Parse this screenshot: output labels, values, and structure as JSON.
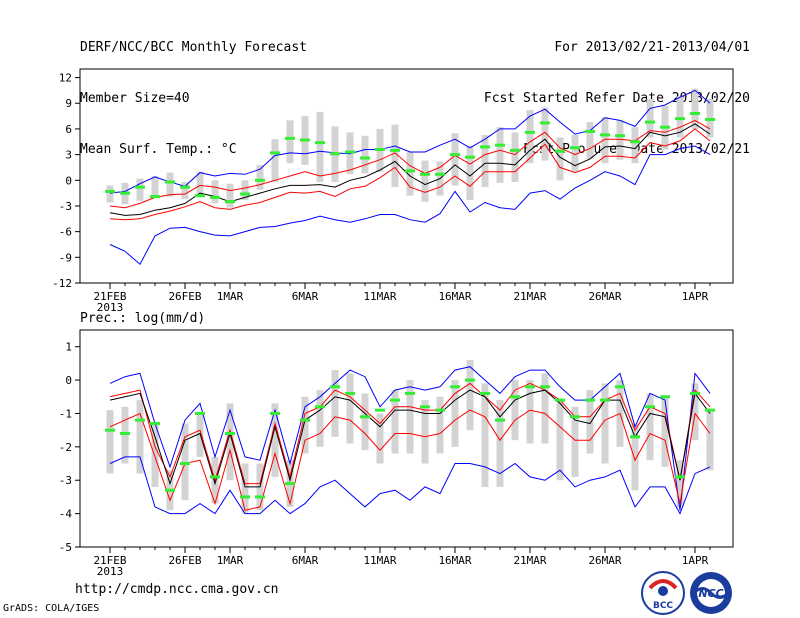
{
  "header": {
    "title": "DERF/NCC/BCC Monthly Forecast",
    "member_size": "Member Size=40",
    "variable_top": "Mean Surf. Temp.: °C",
    "forecast_range": "For 2013/02/21-2013/04/01",
    "started_refer": "Fcst Started Refer Date 2013/02/20",
    "produced": "Fcst Produced Date 2013/02/21"
  },
  "footer": {
    "url": "http://cmdp.ncc.cma.gov.cn",
    "grads": "GrADS: COLA/IGES",
    "logo_bcc": "BCC",
    "logo_ncc": "NCC"
  },
  "colors": {
    "max_min": "#0000ff",
    "spread": "#ff0000",
    "mean": "#000000",
    "obs": "#33ee33",
    "box": "#d3d3d3"
  },
  "chart_data": [
    {
      "type": "line",
      "title": "Mean Surf. Temp.: °C",
      "ylim": [
        -12,
        13
      ],
      "yticks": [
        "12",
        "9",
        "6",
        "3",
        "0",
        "-3",
        "-6",
        "-9",
        "-12"
      ],
      "yticks_values": [
        12,
        9,
        6,
        3,
        0,
        -3,
        -6,
        -9,
        -12
      ],
      "xticks": [
        {
          "day": 0,
          "label": "21FEB"
        },
        {
          "day": 5,
          "label": "26FEB"
        },
        {
          "day": 8,
          "label": "1MAR"
        },
        {
          "day": 13,
          "label": "6MAR"
        },
        {
          "day": 18,
          "label": "11MAR"
        },
        {
          "day": 23,
          "label": "16MAR"
        },
        {
          "day": 28,
          "label": "21MAR"
        },
        {
          "day": 33,
          "label": "26MAR"
        },
        {
          "day": 39,
          "label": "1APR"
        }
      ],
      "year_label": "2013",
      "series": [
        {
          "name": "max",
          "values": [
            -1.5,
            -1.3,
            -0.4,
            0.4,
            -0.2,
            -0.7,
            0.9,
            0.5,
            0.8,
            0.7,
            1.3,
            2.9,
            3.2,
            3.1,
            3.4,
            3.2,
            3.1,
            3.6,
            3.6,
            4.0,
            3.3,
            3.3,
            4.1,
            4.8,
            3.8,
            4.8,
            6.0,
            6.0,
            7.5,
            8.3,
            6.8,
            5.4,
            5.8,
            7.3,
            7.0,
            6.3,
            8.4,
            8.8,
            9.7,
            10.5,
            9.0
          ]
        },
        {
          "name": "spread_high",
          "values": [
            -3.0,
            -3.2,
            -2.7,
            -2.0,
            -1.7,
            -1.6,
            -0.6,
            -0.8,
            -1.2,
            -0.9,
            -0.5,
            0.0,
            0.5,
            1.0,
            0.5,
            0.8,
            1.2,
            1.8,
            2.4,
            3.2,
            1.7,
            0.8,
            1.5,
            2.9,
            1.9,
            3.0,
            3.5,
            3.0,
            4.5,
            5.6,
            3.8,
            3.0,
            3.7,
            4.8,
            4.8,
            4.6,
            5.8,
            5.6,
            6.2,
            7.0,
            6.0
          ]
        },
        {
          "name": "mean",
          "values": [
            -3.8,
            -4.1,
            -4.0,
            -3.5,
            -3.2,
            -2.7,
            -1.5,
            -1.9,
            -2.5,
            -2.0,
            -1.5,
            -1.0,
            -0.6,
            -0.6,
            -0.5,
            -0.8,
            0.0,
            0.4,
            1.2,
            2.2,
            0.5,
            -0.5,
            0.2,
            1.8,
            0.5,
            2.0,
            2.0,
            1.8,
            3.5,
            4.8,
            2.7,
            1.7,
            2.5,
            3.9,
            4.0,
            3.7,
            5.6,
            5.2,
            5.6,
            6.6,
            5.4
          ]
        },
        {
          "name": "spread_low",
          "values": [
            -4.5,
            -4.6,
            -4.5,
            -4.0,
            -3.6,
            -3.1,
            -2.5,
            -3.2,
            -3.4,
            -2.9,
            -2.6,
            -2.0,
            -1.4,
            -1.5,
            -1.3,
            -1.9,
            -1.0,
            -0.7,
            0.3,
            1.5,
            -0.8,
            -1.4,
            -0.8,
            0.5,
            -0.7,
            1.0,
            1.0,
            1.0,
            2.6,
            4.2,
            1.5,
            0.9,
            1.5,
            2.8,
            2.8,
            2.6,
            4.4,
            4.0,
            4.6,
            6.0,
            4.6
          ]
        },
        {
          "name": "min",
          "values": [
            -7.5,
            -8.3,
            -9.8,
            -6.5,
            -5.6,
            -5.5,
            -6.0,
            -6.4,
            -6.5,
            -6.0,
            -5.5,
            -5.4,
            -5.0,
            -4.7,
            -4.2,
            -4.6,
            -4.9,
            -4.5,
            -4.0,
            -4.0,
            -4.6,
            -4.9,
            -3.9,
            -1.3,
            -3.7,
            -2.6,
            -3.2,
            -3.4,
            -1.5,
            -1.2,
            -2.2,
            -0.9,
            0.0,
            1.0,
            0.5,
            -0.5,
            3.0,
            3.0,
            3.7,
            4.0,
            3.0
          ]
        },
        {
          "name": "obs",
          "values": [
            -1.3,
            -1.5,
            -0.8,
            -1.9,
            -0.2,
            -0.8,
            -1.8,
            -2.0,
            -2.5,
            -1.6,
            0.0,
            3.2,
            4.9,
            4.7,
            4.4,
            3.1,
            3.3,
            2.6,
            3.6,
            3.5,
            1.1,
            0.7,
            0.7,
            3.0,
            2.7,
            3.9,
            4.1,
            3.5,
            5.6,
            6.7,
            3.4,
            3.8,
            5.7,
            5.3,
            5.2,
            4.5,
            6.8,
            6.2,
            7.2,
            7.8,
            7.1
          ]
        }
      ],
      "boxes": [
        [
          -2.6,
          -0.6
        ],
        [
          -2.8,
          -0.3
        ],
        [
          -2.4,
          0.2
        ],
        [
          -1.8,
          0.5
        ],
        [
          -1.9,
          0.9
        ],
        [
          -2.2,
          -0.2
        ],
        [
          -1.7,
          1.0
        ],
        [
          -2.7,
          0.0
        ],
        [
          -3.2,
          -0.4
        ],
        [
          -2.3,
          0.0
        ],
        [
          -1.1,
          1.8
        ],
        [
          -0.2,
          4.8
        ],
        [
          2.0,
          7.0
        ],
        [
          1.8,
          7.5
        ],
        [
          -0.2,
          8.0
        ],
        [
          -0.2,
          6.3
        ],
        [
          0.7,
          5.6
        ],
        [
          0.8,
          5.2
        ],
        [
          1.0,
          6.0
        ],
        [
          -0.8,
          6.5
        ],
        [
          -1.8,
          3.3
        ],
        [
          -2.5,
          2.3
        ],
        [
          -1.8,
          2.2
        ],
        [
          -0.6,
          5.5
        ],
        [
          -2.3,
          4.0
        ],
        [
          -0.8,
          5.3
        ],
        [
          -0.3,
          6.2
        ],
        [
          -0.2,
          5.6
        ],
        [
          2.0,
          8.2
        ],
        [
          2.3,
          8.5
        ],
        [
          0.0,
          5.0
        ],
        [
          1.0,
          5.3
        ],
        [
          2.5,
          6.8
        ],
        [
          2.0,
          7.4
        ],
        [
          2.4,
          7.0
        ],
        [
          2.0,
          6.2
        ],
        [
          5.0,
          9.5
        ],
        [
          3.6,
          8.7
        ],
        [
          5.0,
          9.8
        ],
        [
          6.0,
          10.7
        ],
        [
          5.0,
          9.5
        ]
      ]
    },
    {
      "type": "line",
      "title": "Prec.: log(mm/d)",
      "ylim": [
        -5,
        1.5
      ],
      "yticks": [
        "1",
        "0",
        "-1",
        "-2",
        "-3",
        "-4",
        "-5"
      ],
      "yticks_values": [
        1,
        0,
        -1,
        -2,
        -3,
        -4,
        -5
      ],
      "xticks": [
        {
          "day": 0,
          "label": "21FEB"
        },
        {
          "day": 5,
          "label": "26FEB"
        },
        {
          "day": 8,
          "label": "1MAR"
        },
        {
          "day": 13,
          "label": "6MAR"
        },
        {
          "day": 18,
          "label": "11MAR"
        },
        {
          "day": 23,
          "label": "16MAR"
        },
        {
          "day": 28,
          "label": "21MAR"
        },
        {
          "day": 33,
          "label": "26MAR"
        },
        {
          "day": 39,
          "label": "1APR"
        }
      ],
      "year_label": "2013",
      "series": [
        {
          "name": "max",
          "values": [
            -0.1,
            0.1,
            0.2,
            -1.3,
            -2.6,
            -1.2,
            -0.7,
            -2.3,
            -0.9,
            -2.3,
            -2.4,
            -0.9,
            -2.5,
            -0.8,
            -0.5,
            -0.1,
            0.3,
            0.1,
            -0.8,
            -0.3,
            -0.2,
            -0.3,
            -0.2,
            0.3,
            0.4,
            0.0,
            -0.4,
            0.1,
            0.3,
            0.3,
            -0.2,
            -0.6,
            -0.6,
            -0.2,
            0.2,
            -1.4,
            -0.4,
            -0.6,
            -3.9,
            0.2,
            -0.4
          ]
        },
        {
          "name": "spread_high",
          "values": [
            -0.5,
            -0.4,
            -0.3,
            -2.0,
            -2.9,
            -1.7,
            -1.5,
            -3.0,
            -1.5,
            -3.1,
            -3.1,
            -1.3,
            -2.9,
            -1.0,
            -0.8,
            -0.3,
            -0.5,
            -0.9,
            -1.3,
            -0.8,
            -0.8,
            -0.9,
            -0.9,
            -0.4,
            -0.1,
            -0.5,
            -0.9,
            -0.3,
            -0.1,
            -0.3,
            -0.6,
            -1.1,
            -1.1,
            -0.6,
            -0.4,
            -1.5,
            -0.8,
            -1.0,
            -3.0,
            -0.3,
            -0.8
          ]
        },
        {
          "name": "mean",
          "values": [
            -0.6,
            -0.5,
            -0.4,
            -1.7,
            -3.1,
            -1.8,
            -1.6,
            -3.1,
            -1.6,
            -3.2,
            -3.2,
            -1.4,
            -3.0,
            -1.2,
            -0.9,
            -0.5,
            -0.6,
            -1.0,
            -1.4,
            -0.9,
            -0.9,
            -1.0,
            -1.0,
            -0.6,
            -0.3,
            -0.5,
            -1.1,
            -0.6,
            -0.4,
            -0.3,
            -0.7,
            -1.2,
            -1.3,
            -0.6,
            -0.6,
            -1.7,
            -1.0,
            -1.1,
            -3.0,
            -0.4,
            -1.0
          ]
        },
        {
          "name": "spread_low",
          "values": [
            -1.4,
            -1.2,
            -1.0,
            -2.3,
            -3.6,
            -2.5,
            -2.4,
            -3.7,
            -2.1,
            -3.9,
            -3.8,
            -2.2,
            -3.7,
            -1.8,
            -1.6,
            -1.1,
            -1.2,
            -1.6,
            -2.1,
            -1.6,
            -1.6,
            -1.7,
            -1.6,
            -1.2,
            -0.9,
            -1.1,
            -1.8,
            -1.2,
            -0.9,
            -1.0,
            -1.4,
            -1.8,
            -1.8,
            -1.2,
            -1.0,
            -2.4,
            -1.6,
            -1.8,
            -3.7,
            -1.0,
            -1.6
          ]
        },
        {
          "name": "min",
          "values": [
            -2.5,
            -2.3,
            -2.3,
            -3.8,
            -4.0,
            -4.0,
            -3.7,
            -4.0,
            -3.3,
            -4.0,
            -4.0,
            -3.6,
            -4.0,
            -3.7,
            -3.2,
            -3.0,
            -3.4,
            -3.8,
            -3.4,
            -3.3,
            -3.6,
            -3.2,
            -3.4,
            -2.5,
            -2.5,
            -2.6,
            -2.8,
            -2.5,
            -2.9,
            -3.0,
            -2.7,
            -3.2,
            -3.0,
            -2.9,
            -2.7,
            -3.8,
            -3.2,
            -3.2,
            -4.0,
            -2.8,
            -2.6
          ]
        },
        {
          "name": "obs",
          "values": [
            -1.5,
            -1.6,
            -1.2,
            -1.3,
            -3.3,
            -2.5,
            -1.0,
            -2.9,
            -1.6,
            -3.5,
            -3.5,
            -1.0,
            -3.1,
            -1.2,
            -0.8,
            -0.2,
            -0.4,
            -1.1,
            -0.9,
            -0.6,
            -0.4,
            -0.8,
            -0.9,
            -0.2,
            0.0,
            -0.4,
            -1.2,
            -0.5,
            -0.2,
            -0.2,
            -0.6,
            -1.1,
            -0.6,
            -0.6,
            -0.2,
            -1.7,
            -0.8,
            -0.5,
            -2.9,
            -0.4,
            -0.9
          ]
        }
      ],
      "boxes": [
        [
          -2.8,
          -0.9
        ],
        [
          -2.5,
          -0.8
        ],
        [
          -2.8,
          -0.6
        ],
        [
          -3.2,
          -1.3
        ],
        [
          -3.9,
          -2.7
        ],
        [
          -3.6,
          -1.3
        ],
        [
          -2.3,
          -1.0
        ],
        [
          -3.7,
          -2.3
        ],
        [
          -3.0,
          -0.7
        ],
        [
          -4.0,
          -2.5
        ],
        [
          -3.9,
          -2.5
        ],
        [
          -2.9,
          -0.7
        ],
        [
          -3.8,
          -2.4
        ],
        [
          -2.2,
          -0.5
        ],
        [
          -2.0,
          -0.3
        ],
        [
          -1.7,
          0.3
        ],
        [
          -1.9,
          0.2
        ],
        [
          -2.1,
          -0.4
        ],
        [
          -2.5,
          -1.0
        ],
        [
          -2.2,
          -0.3
        ],
        [
          -2.2,
          0.0
        ],
        [
          -2.5,
          -0.6
        ],
        [
          -2.2,
          -0.5
        ],
        [
          -2.0,
          0.0
        ],
        [
          -1.5,
          0.6
        ],
        [
          -3.2,
          -0.1
        ],
        [
          -3.2,
          -0.6
        ],
        [
          -1.8,
          0.0
        ],
        [
          -1.9,
          0.0
        ],
        [
          -1.9,
          0.2
        ],
        [
          -3.0,
          -0.6
        ],
        [
          -2.9,
          -0.8
        ],
        [
          -2.2,
          -0.3
        ],
        [
          -2.5,
          -0.1
        ],
        [
          -2.0,
          0.0
        ],
        [
          -3.3,
          -1.3
        ],
        [
          -2.4,
          -0.4
        ],
        [
          -2.6,
          -0.5
        ],
        [
          -3.8,
          -2.4
        ],
        [
          -1.8,
          -0.1
        ],
        [
          -2.7,
          -0.9
        ]
      ]
    }
  ]
}
